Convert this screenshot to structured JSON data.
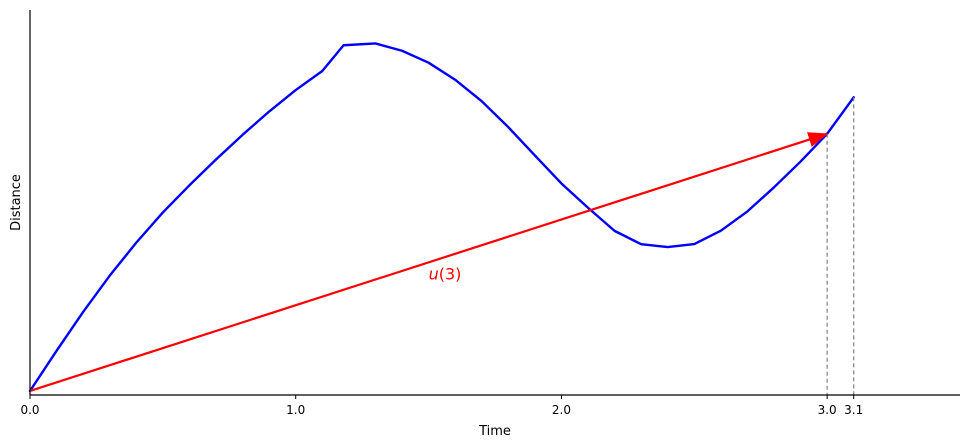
{
  "chart_data": {
    "type": "line",
    "title": "",
    "xlabel": "Time",
    "ylabel": "Distance",
    "xlim": [
      0.0,
      3.5
    ],
    "ylim": [
      -0.2,
      18.8
    ],
    "grid": false,
    "x_ticks": [
      {
        "value": 0.0,
        "label": "0.0"
      },
      {
        "value": 1.0,
        "label": "1.0"
      },
      {
        "value": 2.0,
        "label": "2.0"
      },
      {
        "value": 3.0,
        "label": "3.0"
      },
      {
        "value": 3.1,
        "label": "3.1"
      }
    ],
    "series": [
      {
        "color": "#0000ff",
        "x": [
          0.0,
          0.1,
          0.2,
          0.3,
          0.4,
          0.5,
          0.6,
          0.7,
          0.8,
          0.9,
          1.0,
          1.1,
          1.18,
          1.3,
          1.4,
          1.5,
          1.6,
          1.7,
          1.8,
          1.9,
          2.0,
          2.1,
          2.2,
          2.3,
          2.4,
          2.5,
          2.6,
          2.7,
          2.8,
          2.9,
          3.0,
          3.1
        ],
        "y": [
          0.0,
          1.98,
          3.9,
          5.69,
          7.32,
          8.81,
          10.15,
          11.42,
          12.64,
          13.79,
          14.85,
          15.79,
          17.06,
          17.15,
          16.79,
          16.2,
          15.36,
          14.3,
          13.02,
          11.62,
          10.24,
          9.04,
          7.9,
          7.24,
          7.1,
          7.25,
          7.91,
          8.86,
          10.05,
          11.32,
          12.69,
          14.49
        ]
      }
    ],
    "dashed_verticals": [
      {
        "x": 3.0,
        "y": 12.69,
        "color": "#808080"
      },
      {
        "x": 3.1,
        "y": 14.49,
        "color": "#808080"
      }
    ],
    "arrow": {
      "from": [
        0.0,
        0.0
      ],
      "to": [
        3.0,
        12.69
      ],
      "color": "#ff0000",
      "label": "u(3)",
      "label_position": [
        1.5,
        5.5
      ]
    },
    "spines": {
      "top": false,
      "right": false,
      "left": true,
      "bottom": true
    },
    "colors": {
      "axis": "#000000",
      "curve": "#0000ff",
      "arrow": "#ff0000",
      "guide": "#808080"
    }
  }
}
